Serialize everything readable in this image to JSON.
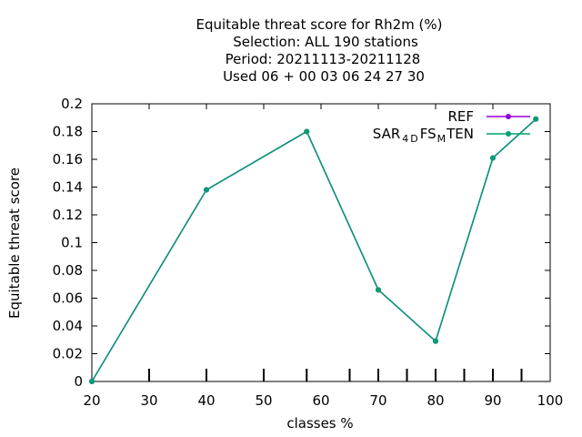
{
  "chart_data": {
    "type": "line",
    "title_lines": [
      "Equitable threat score  for Rh2m (%)",
      "Selection: ALL    190 stations",
      "Period: 20211113-20211128",
      "Used  06 + 00 03 06 24 27 30"
    ],
    "xlabel": "classes %",
    "ylabel": "Equitable threat score",
    "xlim": [
      20,
      100
    ],
    "ylim": [
      0,
      0.2
    ],
    "x_ticks": [
      "20",
      "30",
      "40",
      "50",
      "60",
      "70",
      "80",
      "90",
      "100"
    ],
    "y_ticks": [
      "0",
      "0.02",
      "0.04",
      "0.06",
      "0.08",
      "0.1",
      "0.12",
      "0.14",
      "0.16",
      "0.18",
      "0.2"
    ],
    "bottom_tick_marks": [
      30,
      40,
      50,
      57.5,
      65,
      70,
      75,
      80,
      85,
      90,
      95
    ],
    "grid": false,
    "legend_position": "top-right",
    "series": [
      {
        "name": "REF",
        "color": "#9400d3",
        "x": [
          20,
          40,
          57.5,
          70,
          80,
          90,
          97.5
        ],
        "y": [
          0.0,
          0.138,
          0.18,
          0.066,
          0.029,
          0.161,
          0.189
        ]
      },
      {
        "name": "SAR_{4D}FS_{M}TEN",
        "legend_parts": [
          "SAR",
          "4",
          "D",
          "FS",
          "M",
          "TEN"
        ],
        "color": "#009e73",
        "x": [
          20,
          40,
          57.5,
          70,
          80,
          90,
          97.5
        ],
        "y": [
          0.0,
          0.138,
          0.18,
          0.066,
          0.029,
          0.161,
          0.189
        ]
      }
    ]
  }
}
